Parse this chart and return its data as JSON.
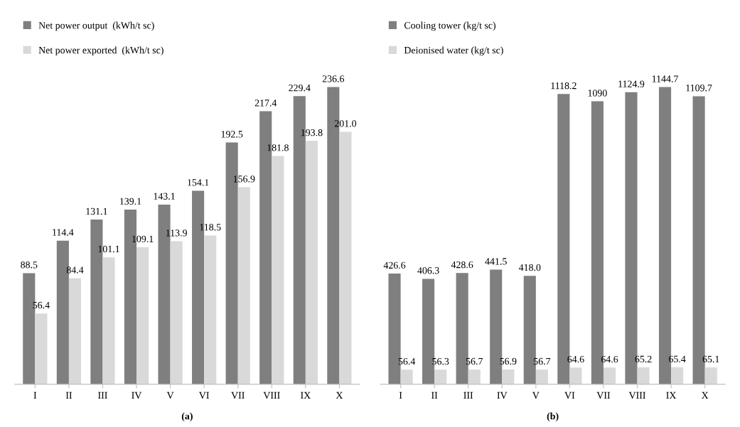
{
  "chart_data": [
    {
      "type": "bar",
      "xlabel": "(a)",
      "categories": [
        "I",
        "II",
        "III",
        "IV",
        "V",
        "VI",
        "VII",
        "VIII",
        "IX",
        "X"
      ],
      "series": [
        {
          "name": "Net power output  (kWh/t sc)",
          "color": "#7f7f7f",
          "values": [
            88.5,
            114.4,
            131.1,
            139.1,
            143.1,
            154.1,
            192.5,
            217.4,
            229.4,
            236.6
          ],
          "value_labels": [
            "88.5",
            "114.4",
            "131.1",
            "139.1",
            "143.1",
            "154.1",
            "192.5",
            "217.4",
            "229.4",
            "236.6"
          ]
        },
        {
          "name": "Net power exported  (kWh/t sc)",
          "color": "#d9d9d9",
          "values": [
            56.4,
            84.4,
            101.1,
            109.1,
            113.9,
            118.5,
            156.9,
            181.8,
            193.8,
            201.0
          ],
          "value_labels": [
            "56.4",
            "84.4",
            "101.1",
            "109.1",
            "113.9",
            "118.5",
            "156.9",
            "181.8",
            "193.8",
            "201.0"
          ]
        }
      ],
      "legend": "top left",
      "grid": false
    },
    {
      "type": "bar",
      "xlabel": "(b)",
      "categories": [
        "I",
        "II",
        "III",
        "IV",
        "V",
        "VI",
        "VII",
        "VIII",
        "IX",
        "X"
      ],
      "series": [
        {
          "name": "Cooling tower (kg/t sc)",
          "color": "#7f7f7f",
          "values": [
            426.6,
            406.3,
            428.6,
            441.5,
            418.0,
            1118.2,
            1090,
            1124.9,
            1144.7,
            1109.7
          ],
          "value_labels": [
            "426.6",
            "406.3",
            "428.6",
            "441.5",
            "418.0",
            "1118.2",
            "1090",
            "1124.9",
            "1144.7",
            "1109.7"
          ]
        },
        {
          "name": "Deionised water (kg/t sc)",
          "color": "#d9d9d9",
          "values": [
            56.4,
            56.3,
            56.7,
            56.9,
            56.7,
            64.6,
            64.6,
            65.2,
            65.4,
            65.1
          ],
          "value_labels": [
            "56.4",
            "56.3",
            "56.7",
            "56.9",
            "56.7",
            "64.6",
            "64.6",
            "65.2",
            "65.4",
            "65.1"
          ]
        }
      ],
      "legend": "top left",
      "grid": false
    }
  ]
}
